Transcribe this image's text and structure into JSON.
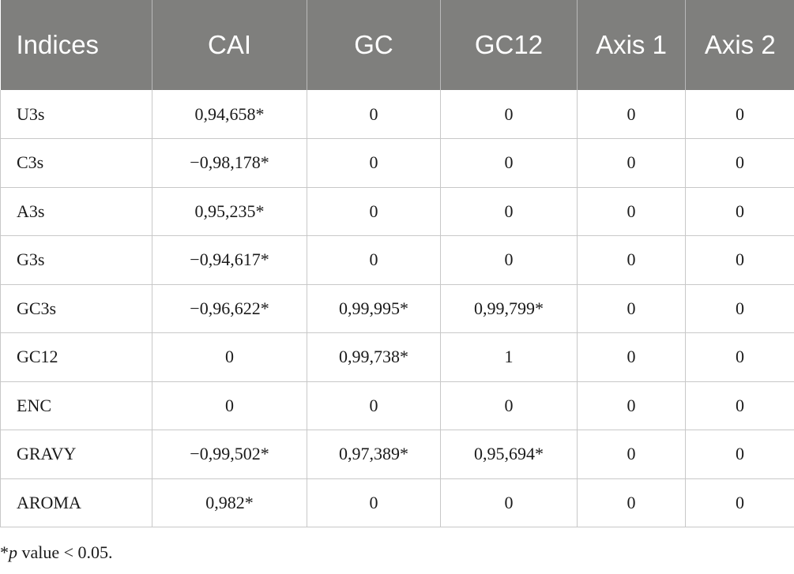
{
  "table": {
    "headers": [
      "Indices",
      "CAI",
      "GC",
      "GC12",
      "Axis 1",
      "Axis 2"
    ],
    "rows": [
      [
        "U3s",
        "0,94,658*",
        "0",
        "0",
        "0",
        "0"
      ],
      [
        "C3s",
        "−0,98,178*",
        "0",
        "0",
        "0",
        "0"
      ],
      [
        "A3s",
        "0,95,235*",
        "0",
        "0",
        "0",
        "0"
      ],
      [
        "G3s",
        "−0,94,617*",
        "0",
        "0",
        "0",
        "0"
      ],
      [
        "GC3s",
        "−0,96,622*",
        "0,99,995*",
        "0,99,799*",
        "0",
        "0"
      ],
      [
        "GC12",
        "0",
        "0,99,738*",
        "1",
        "0",
        "0"
      ],
      [
        "ENC",
        "0",
        "0",
        "0",
        "0",
        "0"
      ],
      [
        "GRAVY",
        "−0,99,502*",
        "0,97,389*",
        "0,95,694*",
        "0",
        "0"
      ],
      [
        "AROMA",
        "0,982*",
        "0",
        "0",
        "0",
        "0"
      ]
    ]
  },
  "footnote": {
    "marker": "*",
    "italic": "p",
    "text": " value < 0.05."
  },
  "colors": {
    "header_bg": "#7f7f7d",
    "header_text": "#ffffff",
    "border": "#c8c8c8"
  }
}
